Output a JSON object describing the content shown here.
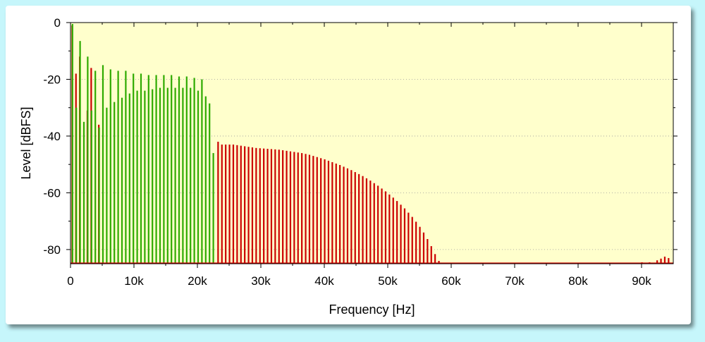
{
  "chart_data": {
    "type": "bar",
    "xlabel": "Frequency [Hz]",
    "ylabel": "Level [dBFS]",
    "xlim": [
      0,
      95000
    ],
    "ylim": [
      -85,
      0
    ],
    "x_ticks": [
      0,
      10000,
      20000,
      30000,
      40000,
      50000,
      60000,
      70000,
      80000,
      90000
    ],
    "x_tick_labels": [
      "0",
      "10k",
      "20k",
      "30k",
      "40k",
      "50k",
      "60k",
      "70k",
      "80k",
      "90k"
    ],
    "y_ticks": [
      0,
      -20,
      -40,
      -60,
      -80
    ],
    "y_tick_labels": [
      "0",
      "-20",
      "-40",
      "-60",
      "-80"
    ],
    "grid": "horizontal dotted",
    "colors": {
      "plot_bg": "#ffffcc",
      "green": "#2eaa00",
      "red": "#cc0000",
      "frame_bg": "#c6f6fb"
    },
    "series": [
      {
        "color": "green",
        "x": [
          300,
          900,
          1500,
          2100,
          2700,
          3300,
          3900,
          4500,
          5100,
          5700,
          6300,
          6900,
          7500,
          8100,
          8700,
          9300,
          9900,
          10500,
          11100,
          11700,
          12300,
          12900,
          13500,
          14100,
          14700,
          15300,
          15900,
          16500,
          17100,
          17700,
          18300,
          18900,
          19500,
          20100,
          20700,
          21300,
          21900,
          22500,
          23100
        ],
        "values": [
          -0.5,
          -30,
          -6.5,
          -35,
          -12,
          -31,
          -17,
          -37,
          -15,
          -30,
          -16.5,
          -28,
          -17,
          -26.5,
          -17,
          -25,
          -18,
          -24,
          -18,
          -24,
          -18.5,
          -23.5,
          -18.5,
          -23,
          -18.5,
          -23,
          -18.5,
          -23,
          -19,
          -23,
          -19,
          -23,
          -19.5,
          -24,
          -20,
          -26,
          -28.5,
          -46,
          -86
        ]
      },
      {
        "color": "red",
        "values": [
          -1,
          -18,
          -12,
          -31,
          -16,
          -36,
          -42,
          -43,
          -43,
          -43,
          -43,
          -43.2,
          -43.4,
          -43.6,
          -43.8,
          -44,
          -44.2,
          -44.3,
          -44.4,
          -44.5,
          -44.6,
          -44.7,
          -44.8,
          -45,
          -45.2,
          -45.4,
          -45.6,
          -45.8,
          -46,
          -46.3,
          -46.6,
          -47,
          -47.4,
          -47.8,
          -48.2,
          -48.7,
          -49.2,
          -49.7,
          -50.2,
          -50.8,
          -51.4,
          -52,
          -52.7,
          -53.4,
          -54.1,
          -54.9,
          -55.7,
          -56.6,
          -57.5,
          -58.5,
          -59.5,
          -60.6,
          -61.7,
          -62.9,
          -64.2,
          -65.5,
          -67,
          -68.5,
          -70.2,
          -72,
          -74,
          -76.3,
          -78.8,
          -81.6,
          -84,
          -84.5,
          -84.5,
          -83.8,
          -83.2,
          -82.5,
          -83
        ],
        "x": [
          250,
          850,
          1450,
          2650,
          3250,
          4450,
          23250,
          23850,
          24450,
          25050,
          25650,
          26250,
          26850,
          27450,
          28050,
          28650,
          29250,
          29850,
          30450,
          31050,
          31650,
          32250,
          32850,
          33450,
          34050,
          34650,
          35250,
          35850,
          36450,
          37050,
          37650,
          38250,
          38850,
          39450,
          40050,
          40650,
          41250,
          41850,
          42450,
          43050,
          43650,
          44250,
          44850,
          45450,
          46050,
          46650,
          47250,
          47850,
          48450,
          49050,
          49650,
          50250,
          50850,
          51450,
          52050,
          52650,
          53250,
          53850,
          54450,
          55050,
          55650,
          56250,
          56850,
          57450,
          58050,
          90050,
          91250,
          92450,
          93050,
          93650,
          94250
        ]
      }
    ]
  }
}
